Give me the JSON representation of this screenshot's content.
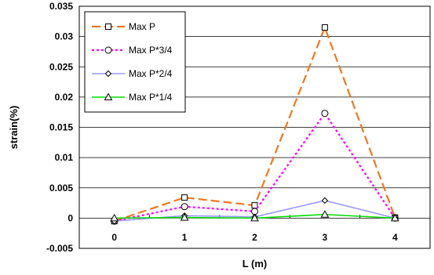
{
  "chart_data": {
    "type": "line",
    "xlabel": "L (m)",
    "ylabel": "strain(%)",
    "x": [
      0,
      1,
      2,
      3,
      4
    ],
    "xlim": [
      -0.5,
      4.5
    ],
    "ylim": [
      -0.005,
      0.035
    ],
    "xticks": [
      "0",
      "1",
      "2",
      "3",
      "4"
    ],
    "yticks": [
      "-0.005",
      "0",
      "0.005",
      "0.01",
      "0.015",
      "0.02",
      "0.025",
      "0.03",
      "0.035"
    ],
    "grid": "horizontal",
    "legend_position": "top-left",
    "series": [
      {
        "name": "Max P",
        "values": [
          -0.0005,
          0.0034,
          0.0021,
          0.0315,
          0.0001
        ],
        "color": "#f07820",
        "dash": "long-dash",
        "marker": "square"
      },
      {
        "name": "Max P*3/4",
        "values": [
          -0.0005,
          0.0019,
          0.0011,
          0.0173,
          0.0
        ],
        "color": "#ff00ff",
        "dash": "dot",
        "marker": "circle"
      },
      {
        "name": "Max P*2/4",
        "values": [
          -0.0005,
          0.0004,
          0.0002,
          0.0029,
          0.0
        ],
        "color": "#9999ff",
        "dash": "solid",
        "marker": "diamond"
      },
      {
        "name": "Max P*1/4",
        "values": [
          0.0,
          0.0001,
          0.0,
          0.0006,
          0.0
        ],
        "color": "#00dd00",
        "dash": "solid",
        "marker": "triangle"
      }
    ]
  }
}
